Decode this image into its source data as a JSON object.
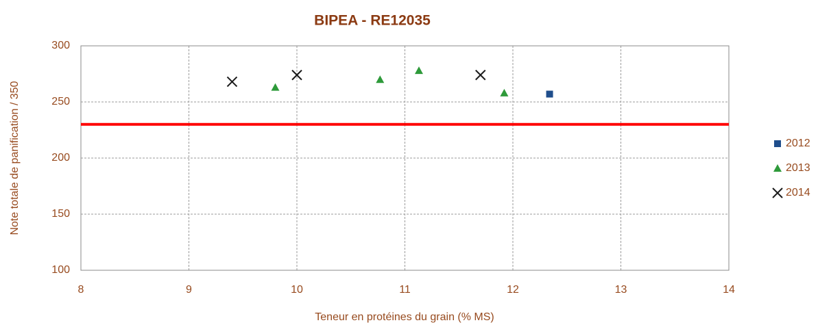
{
  "chart_data": {
    "type": "scatter",
    "title": "BIPEA - RE12035",
    "x_label": "Teneur en protéines du grain (% MS)",
    "y_label": "Note totale de panification / 350",
    "xlim": [
      8,
      14
    ],
    "xticks": [
      8,
      9,
      10,
      11,
      12,
      13,
      14
    ],
    "ylim": [
      100,
      300
    ],
    "yticks": [
      100,
      150,
      200,
      250,
      300
    ],
    "grid": true,
    "legend": "right",
    "reference_line": {
      "value": 230,
      "color": "#ff0000"
    },
    "series": [
      {
        "name": "2012",
        "color": "#1f4e8c",
        "marker": "square",
        "x": [
          12.34
        ],
        "values": [
          257
        ]
      },
      {
        "name": "2013",
        "color": "#2e9a3a",
        "marker": "triangle",
        "x": [
          9.8,
          10.77,
          11.13,
          11.92
        ],
        "values": [
          263,
          270,
          278,
          258
        ]
      },
      {
        "name": "2014",
        "color": "#1a1a1a",
        "marker": "cross",
        "x": [
          9.4,
          10.0,
          11.7
        ],
        "values": [
          268,
          274,
          274
        ]
      }
    ]
  }
}
